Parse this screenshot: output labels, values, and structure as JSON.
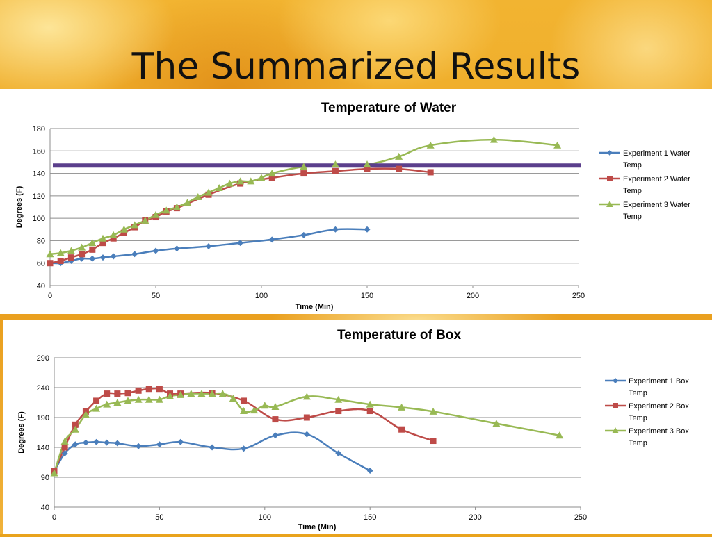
{
  "slide": {
    "title": "The Summarized Results"
  },
  "chart_data": [
    {
      "type": "line",
      "title": "Temperature of Water",
      "xlabel": "Time (Min)",
      "ylabel": "Degrees (F)",
      "xlim": [
        0,
        250
      ],
      "ylim": [
        40,
        180
      ],
      "xticks": [
        0,
        50,
        100,
        150,
        200,
        250
      ],
      "yticks": [
        40,
        60,
        80,
        100,
        120,
        140,
        160,
        180
      ],
      "grid": true,
      "legend_position": "right",
      "reference_line": {
        "y": 147,
        "color": "#5b3f8c"
      },
      "series": [
        {
          "name": "Experiment 1 Water Temp",
          "color": "#4a7ebb",
          "marker": "diamond",
          "x": [
            0,
            5,
            10,
            15,
            20,
            25,
            30,
            40,
            50,
            60,
            75,
            90,
            105,
            120,
            135,
            150
          ],
          "y": [
            60,
            60,
            62,
            64,
            64,
            65,
            66,
            68,
            71,
            73,
            75,
            78,
            81,
            85,
            90,
            90
          ]
        },
        {
          "name": "Experiment 2 Water Temp",
          "color": "#be4b48",
          "marker": "square",
          "x": [
            0,
            5,
            10,
            15,
            20,
            25,
            30,
            35,
            40,
            45,
            50,
            55,
            60,
            75,
            90,
            105,
            120,
            135,
            150,
            165,
            180
          ],
          "y": [
            60,
            62,
            65,
            68,
            72,
            78,
            82,
            87,
            92,
            98,
            101,
            106,
            109,
            121,
            131,
            136,
            140,
            142,
            144,
            144,
            141
          ]
        },
        {
          "name": "Experiment 3 Water Temp",
          "color": "#98b954",
          "marker": "triangle",
          "x": [
            0,
            5,
            10,
            15,
            20,
            25,
            30,
            35,
            40,
            45,
            50,
            55,
            60,
            65,
            70,
            75,
            80,
            85,
            90,
            95,
            100,
            105,
            120,
            135,
            150,
            165,
            180,
            210,
            240
          ],
          "y": [
            68,
            69,
            71,
            74,
            78,
            82,
            85,
            90,
            94,
            98,
            103,
            107,
            110,
            114,
            119,
            123,
            127,
            131,
            133,
            133,
            136,
            140,
            146,
            148,
            148,
            155,
            165,
            170,
            165
          ]
        }
      ]
    },
    {
      "type": "line",
      "title": "Temperature of Box",
      "xlabel": "Time (Min)",
      "ylabel": "Degrees (F)",
      "xlim": [
        0,
        250
      ],
      "ylim": [
        40,
        290
      ],
      "xticks": [
        0,
        50,
        100,
        150,
        200,
        250
      ],
      "yticks": [
        40,
        90,
        140,
        190,
        240,
        290
      ],
      "grid": true,
      "legend_position": "right",
      "series": [
        {
          "name": "Experiment 1 Box Temp",
          "color": "#4a7ebb",
          "marker": "diamond",
          "x": [
            0,
            5,
            10,
            15,
            20,
            25,
            30,
            40,
            50,
            60,
            75,
            90,
            105,
            120,
            135,
            150
          ],
          "y": [
            100,
            130,
            145,
            148,
            149,
            148,
            147,
            142,
            145,
            149,
            140,
            138,
            160,
            162,
            130,
            101
          ]
        },
        {
          "name": "Experiment 2 Box Temp",
          "color": "#be4b48",
          "marker": "square",
          "x": [
            0,
            5,
            10,
            15,
            20,
            25,
            30,
            35,
            40,
            45,
            50,
            55,
            60,
            75,
            90,
            105,
            120,
            135,
            150,
            165,
            180
          ],
          "y": [
            100,
            140,
            178,
            200,
            218,
            230,
            230,
            231,
            235,
            238,
            238,
            230,
            230,
            231,
            218,
            187,
            190,
            201,
            201,
            170,
            151
          ]
        },
        {
          "name": "Experiment 3 Box Temp",
          "color": "#98b954",
          "marker": "triangle",
          "x": [
            0,
            5,
            10,
            15,
            20,
            25,
            30,
            35,
            40,
            45,
            50,
            55,
            60,
            65,
            70,
            75,
            80,
            85,
            90,
            95,
            100,
            105,
            120,
            135,
            150,
            165,
            180,
            210,
            240
          ],
          "y": [
            97,
            150,
            170,
            195,
            205,
            212,
            215,
            218,
            220,
            220,
            220,
            226,
            228,
            230,
            230,
            230,
            230,
            222,
            201,
            202,
            210,
            208,
            225,
            220,
            212,
            207,
            200,
            180,
            160
          ]
        }
      ]
    }
  ]
}
